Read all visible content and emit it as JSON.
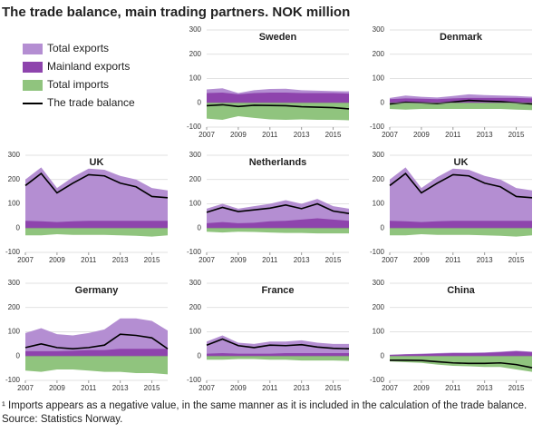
{
  "title": "The trade balance, main trading partners. NOK million",
  "legend": [
    {
      "name": "Total exports",
      "color": "#b48ed2",
      "style": "area"
    },
    {
      "name": "Mainland exports",
      "color": "#8e44ad",
      "style": "area"
    },
    {
      "name": "Total imports",
      "color": "#90c47e",
      "style": "area"
    },
    {
      "name": "The trade balance",
      "color": "#000000",
      "style": "line"
    }
  ],
  "footnote": "¹ Imports appears as a negative value, in the same manner as it is  included in the calculation of the trade balance.",
  "source": "Source: Statistics Norway.",
  "chart_data": [
    {
      "type": "area",
      "title": "Sweden",
      "x": [
        2007,
        2008,
        2009,
        2010,
        2011,
        2012,
        2013,
        2014,
        2015,
        2016
      ],
      "xlim": [
        2007,
        2016
      ],
      "xticks": [
        2007,
        2009,
        2011,
        2013,
        2015
      ],
      "ylim": [
        -100,
        300
      ],
      "yticks": [
        -100,
        0,
        100,
        200,
        300
      ],
      "grid": true,
      "series": [
        {
          "values": [
            55,
            60,
            40,
            52,
            57,
            58,
            52,
            50,
            48,
            47
          ]
        },
        {
          "values": [
            40,
            42,
            35,
            40,
            42,
            42,
            40,
            40,
            40,
            38
          ]
        },
        {
          "values": [
            -65,
            -70,
            -55,
            -62,
            -68,
            -70,
            -68,
            -70,
            -70,
            -72
          ]
        },
        {
          "values": [
            -12,
            -8,
            -15,
            -10,
            -11,
            -12,
            -16,
            -18,
            -20,
            -25
          ]
        }
      ]
    },
    {
      "type": "area",
      "title": "Denmark",
      "x": [
        2007,
        2008,
        2009,
        2010,
        2011,
        2012,
        2013,
        2014,
        2015,
        2016
      ],
      "xlim": [
        2007,
        2016
      ],
      "xticks": [
        2007,
        2009,
        2011,
        2013,
        2015
      ],
      "ylim": [
        -100,
        300
      ],
      "yticks": [
        -100,
        0,
        100,
        200,
        300
      ],
      "grid": true,
      "series": [
        {
          "values": [
            20,
            30,
            25,
            22,
            28,
            35,
            32,
            30,
            28,
            25
          ]
        },
        {
          "values": [
            15,
            18,
            17,
            15,
            18,
            20,
            20,
            20,
            20,
            18
          ]
        },
        {
          "values": [
            -25,
            -28,
            -25,
            -25,
            -25,
            -25,
            -25,
            -25,
            -28,
            -30
          ]
        },
        {
          "values": [
            -5,
            2,
            0,
            -3,
            3,
            10,
            7,
            5,
            0,
            -5
          ]
        }
      ]
    },
    {
      "type": "area",
      "title": "UK",
      "x": [
        2007,
        2008,
        2009,
        2010,
        2011,
        2012,
        2013,
        2014,
        2015,
        2016
      ],
      "xlim": [
        2007,
        2016
      ],
      "xticks": [
        2007,
        2009,
        2011,
        2013,
        2015
      ],
      "ylim": [
        -100,
        300
      ],
      "yticks": [
        -100,
        0,
        100,
        200,
        300
      ],
      "grid": true,
      "series": [
        {
          "values": [
            200,
            250,
            165,
            210,
            245,
            240,
            215,
            200,
            165,
            155
          ]
        },
        {
          "values": [
            30,
            28,
            25,
            28,
            30,
            30,
            30,
            30,
            30,
            30
          ]
        },
        {
          "values": [
            -30,
            -30,
            -25,
            -28,
            -28,
            -28,
            -30,
            -32,
            -35,
            -30
          ]
        },
        {
          "values": [
            175,
            225,
            145,
            185,
            220,
            215,
            185,
            170,
            130,
            125
          ]
        }
      ]
    },
    {
      "type": "area",
      "title": "Netherlands",
      "x": [
        2007,
        2008,
        2009,
        2010,
        2011,
        2012,
        2013,
        2014,
        2015,
        2016
      ],
      "xlim": [
        2007,
        2016
      ],
      "xticks": [
        2007,
        2009,
        2011,
        2013,
        2015
      ],
      "ylim": [
        -100,
        300
      ],
      "yticks": [
        -100,
        0,
        100,
        200,
        300
      ],
      "grid": true,
      "series": [
        {
          "values": [
            80,
            100,
            80,
            90,
            100,
            115,
            100,
            120,
            90,
            80
          ]
        },
        {
          "values": [
            20,
            25,
            20,
            22,
            28,
            30,
            35,
            40,
            35,
            30
          ]
        },
        {
          "values": [
            -15,
            -18,
            -15,
            -16,
            -18,
            -20,
            -20,
            -22,
            -22,
            -22
          ]
        },
        {
          "values": [
            65,
            85,
            68,
            75,
            82,
            95,
            80,
            100,
            70,
            60
          ]
        }
      ]
    },
    {
      "type": "area",
      "title": "UK",
      "x": [
        2007,
        2008,
        2009,
        2010,
        2011,
        2012,
        2013,
        2014,
        2015,
        2016
      ],
      "xlim": [
        2007,
        2016
      ],
      "xticks": [
        2007,
        2009,
        2011,
        2013,
        2015
      ],
      "ylim": [
        -100,
        300
      ],
      "yticks": [
        -100,
        0,
        100,
        200,
        300
      ],
      "grid": true,
      "series": [
        {
          "values": [
            200,
            250,
            165,
            210,
            245,
            240,
            215,
            200,
            165,
            155
          ]
        },
        {
          "values": [
            30,
            28,
            25,
            28,
            30,
            30,
            30,
            30,
            30,
            30
          ]
        },
        {
          "values": [
            -30,
            -30,
            -25,
            -28,
            -28,
            -28,
            -30,
            -32,
            -35,
            -30
          ]
        },
        {
          "values": [
            175,
            225,
            145,
            185,
            220,
            215,
            185,
            170,
            130,
            125
          ]
        }
      ]
    },
    {
      "type": "area",
      "title": "Germany",
      "x": [
        2007,
        2008,
        2009,
        2010,
        2011,
        2012,
        2013,
        2014,
        2015,
        2016
      ],
      "xlim": [
        2007,
        2016
      ],
      "xticks": [
        2007,
        2009,
        2011,
        2013,
        2015
      ],
      "ylim": [
        -100,
        300
      ],
      "yticks": [
        -100,
        0,
        100,
        200,
        300
      ],
      "grid": true,
      "series": [
        {
          "values": [
            95,
            115,
            90,
            85,
            95,
            110,
            155,
            155,
            145,
            105
          ]
        },
        {
          "values": [
            20,
            20,
            20,
            22,
            25,
            25,
            30,
            30,
            30,
            30
          ]
        },
        {
          "values": [
            -60,
            -65,
            -55,
            -55,
            -60,
            -65,
            -65,
            -70,
            -70,
            -75
          ]
        },
        {
          "values": [
            35,
            50,
            35,
            30,
            35,
            45,
            90,
            85,
            75,
            30
          ]
        }
      ]
    },
    {
      "type": "area",
      "title": "France",
      "x": [
        2007,
        2008,
        2009,
        2010,
        2011,
        2012,
        2013,
        2014,
        2015,
        2016
      ],
      "xlim": [
        2007,
        2016
      ],
      "xticks": [
        2007,
        2009,
        2011,
        2013,
        2015
      ],
      "ylim": [
        -100,
        300
      ],
      "yticks": [
        -100,
        0,
        100,
        200,
        300
      ],
      "grid": true,
      "series": [
        {
          "values": [
            60,
            85,
            55,
            50,
            60,
            60,
            65,
            55,
            50,
            50
          ]
        },
        {
          "values": [
            10,
            12,
            10,
            10,
            10,
            12,
            12,
            12,
            12,
            12
          ]
        },
        {
          "values": [
            -15,
            -15,
            -12,
            -12,
            -15,
            -15,
            -18,
            -18,
            -18,
            -20
          ]
        },
        {
          "values": [
            45,
            70,
            43,
            35,
            45,
            43,
            47,
            37,
            32,
            30
          ]
        }
      ]
    },
    {
      "type": "area",
      "title": "China",
      "x": [
        2007,
        2008,
        2009,
        2010,
        2011,
        2012,
        2013,
        2014,
        2015,
        2016
      ],
      "xlim": [
        2007,
        2016
      ],
      "xticks": [
        2007,
        2009,
        2011,
        2013,
        2015
      ],
      "ylim": [
        -100,
        300
      ],
      "yticks": [
        -100,
        0,
        100,
        200,
        300
      ],
      "grid": true,
      "series": [
        {
          "values": [
            5,
            8,
            10,
            12,
            14,
            14,
            15,
            18,
            22,
            18
          ]
        },
        {
          "values": [
            5,
            7,
            8,
            10,
            12,
            12,
            13,
            16,
            20,
            16
          ]
        },
        {
          "values": [
            -22,
            -25,
            -28,
            -35,
            -40,
            -42,
            -45,
            -45,
            -55,
            -65
          ]
        },
        {
          "values": [
            -17,
            -17,
            -18,
            -23,
            -28,
            -30,
            -30,
            -28,
            -35,
            -48
          ]
        }
      ]
    }
  ]
}
